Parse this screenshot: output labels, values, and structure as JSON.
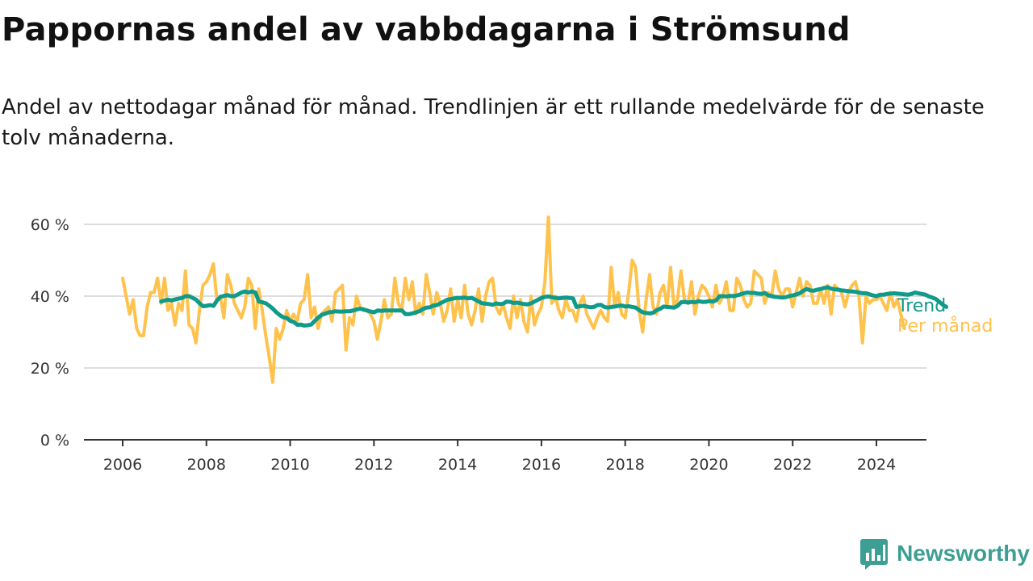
{
  "title": "Pappornas andel av vabbdagarna i Strömsund",
  "subtitle": "Andel av nettodagar månad för månad. Trendlinjen är ett rullande medelvärde för de senaste tolv månaderna.",
  "brand": "Newsworthy",
  "colors": {
    "monthly": "#ffc24d",
    "trend": "#0f9a8a",
    "grid": "#dddddd",
    "axis": "#333333",
    "brand": "#3d9e93"
  },
  "chart_data": {
    "type": "line",
    "xlim": [
      2006,
      2024.42
    ],
    "ylim": [
      0,
      60
    ],
    "yticks": [
      0,
      20,
      40,
      60
    ],
    "ytick_labels": [
      "0 %",
      "20 %",
      "40 %",
      "60 %"
    ],
    "xticks": [
      2006,
      2008,
      2010,
      2012,
      2014,
      2016,
      2018,
      2020,
      2022,
      2024
    ],
    "xtick_labels": [
      "2006",
      "2008",
      "2010",
      "2012",
      "2014",
      "2016",
      "2018",
      "2020",
      "2022",
      "2024"
    ],
    "grid": true,
    "series": [
      {
        "name": "Per månad",
        "label": "Per månad",
        "start": 2006.0,
        "step": 0.08333,
        "values": [
          45,
          40,
          35,
          39,
          31,
          29,
          29,
          37,
          41,
          41,
          45,
          38,
          45,
          36,
          38,
          32,
          38,
          36,
          47,
          32,
          31,
          27,
          36,
          43,
          44,
          46,
          49,
          39,
          40,
          34,
          46,
          43,
          38,
          36,
          34,
          37,
          45,
          43,
          31,
          42,
          36,
          29,
          23,
          16,
          31,
          28,
          31,
          36,
          33,
          35,
          33,
          38,
          39,
          46,
          34,
          37,
          31,
          35,
          36,
          37,
          33,
          41,
          42,
          43,
          25,
          34,
          32,
          40,
          37,
          36,
          36,
          35,
          33,
          28,
          33,
          39,
          34,
          35,
          45,
          38,
          36,
          45,
          39,
          44,
          35,
          38,
          35,
          46,
          41,
          35,
          41,
          38,
          33,
          36,
          42,
          33,
          39,
          34,
          43,
          35,
          32,
          36,
          42,
          33,
          40,
          44,
          45,
          37,
          35,
          38,
          34,
          31,
          40,
          34,
          39,
          33,
          30,
          40,
          32,
          35,
          37,
          44,
          62,
          38,
          40,
          36,
          34,
          39,
          36,
          36,
          33,
          38,
          40,
          35,
          33,
          31,
          34,
          36,
          34,
          33,
          48,
          37,
          41,
          35,
          34,
          41,
          50,
          48,
          36,
          30,
          39,
          46,
          37,
          35,
          41,
          43,
          37,
          48,
          37,
          39,
          47,
          39,
          38,
          44,
          35,
          40,
          43,
          42,
          40,
          37,
          43,
          38,
          40,
          44,
          36,
          36,
          45,
          43,
          39,
          37,
          38,
          47,
          46,
          45,
          38,
          41,
          40,
          47,
          42,
          40,
          42,
          42,
          37,
          41,
          45,
          40,
          44,
          43,
          38,
          38,
          42,
          38,
          43,
          35,
          43,
          42,
          41,
          37,
          41,
          43,
          44,
          40,
          27,
          40,
          38,
          39,
          39,
          40,
          38,
          36,
          41,
          37,
          39,
          35,
          31
        ]
      },
      {
        "name": "Trend",
        "label": "Trend",
        "start": 2006.92,
        "step": 0.08333,
        "values": [
          38.5,
          38.8,
          39,
          38.8,
          39.1,
          39.3,
          39.5,
          40,
          40,
          39.5,
          39,
          38,
          37.2,
          37.3,
          37.5,
          37.3,
          38.8,
          39.8,
          40.1,
          40.3,
          40,
          40,
          40.5,
          41,
          41.3,
          41,
          41.3,
          41,
          38.5,
          38.3,
          38,
          37.3,
          36.5,
          35.5,
          34.7,
          34.1,
          33.9,
          33.1,
          32.8,
          32,
          32.1,
          31.8,
          31.9,
          32.1,
          33.1,
          34,
          34.8,
          35.1,
          35.5,
          35.6,
          35.8,
          35.7,
          35.7,
          35.8,
          35.8,
          36,
          36.3,
          36.5,
          36.3,
          36,
          35.7,
          35.5,
          36,
          35.9,
          36,
          36,
          36,
          36,
          36,
          36,
          35,
          35,
          35.2,
          35.5,
          35.8,
          36.4,
          36.8,
          36.9,
          37.4,
          37.5,
          38,
          38.5,
          39,
          39.2,
          39.4,
          39.5,
          39.5,
          39.6,
          39.4,
          39.5,
          39,
          38.5,
          38,
          37.9,
          37.8,
          37.6,
          38,
          37.8,
          37.9,
          38.5,
          38.4,
          38.1,
          38.2,
          38,
          37.8,
          37.7,
          38,
          38.5,
          39,
          39.5,
          39.8,
          39.9,
          39.7,
          39.5,
          39.4,
          39.5,
          39.6,
          39.5,
          39.4,
          37,
          37.2,
          37.3,
          37.1,
          36.9,
          37,
          37.5,
          37.6,
          37,
          36.8,
          37,
          37.1,
          37.3,
          37.4,
          37.1,
          37.2,
          37,
          36.8,
          36.1,
          35.5,
          35.3,
          35.2,
          35.4,
          36.1,
          36.5,
          37.1,
          37,
          36.9,
          36.8,
          37.3,
          38.3,
          38.4,
          38.2,
          38.4,
          38.3,
          38.6,
          38.4,
          38.4,
          38.6,
          38.5,
          38.8,
          40,
          40,
          39.9,
          40.1,
          40,
          40.2,
          40.5,
          40.8,
          41,
          40.9,
          40.9,
          40.7,
          40.6,
          40.9,
          40.2,
          40,
          39.8,
          39.7,
          39.6,
          39.7,
          40,
          40.2,
          40.5,
          40.8,
          41.5,
          42,
          41.6,
          41.5,
          41.8,
          42,
          42.3,
          42.5,
          42.1,
          41.9,
          41.8,
          41.6,
          41.5,
          41.4,
          41.3,
          41.2,
          41,
          40.8,
          40.8,
          40.5,
          40.2,
          40,
          40.4,
          40.4,
          40.6,
          40.7,
          40.8,
          40.7,
          40.6,
          40.5,
          40.4,
          40.6,
          41,
          40.8,
          40.6,
          40.4,
          39.9,
          39.6,
          39.2,
          38.4,
          37.6,
          37
        ]
      }
    ]
  }
}
